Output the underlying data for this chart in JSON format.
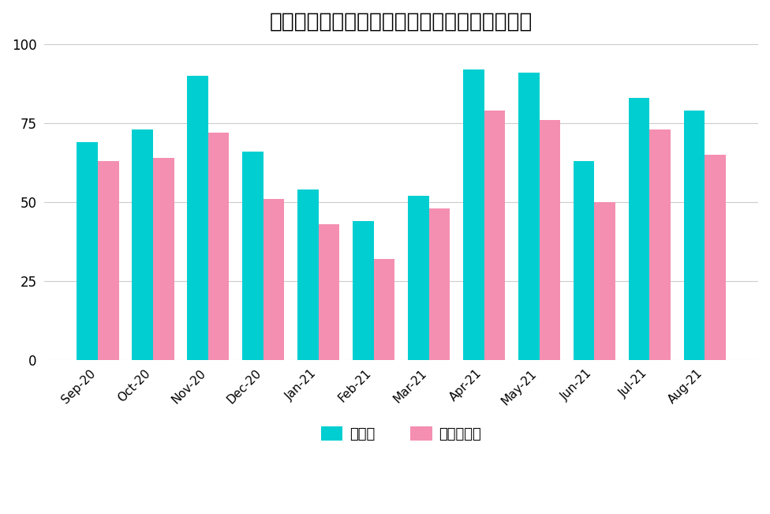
{
  "title": "札幌チャットレディアリュールの応募者数推移",
  "categories": [
    "Sep-20",
    "Oct-20",
    "Nov-20",
    "Dec-20",
    "Jan-21",
    "Feb-21",
    "Mar-21",
    "Apr-21",
    "May-21",
    "Jun-21",
    "Jul-21",
    "Aug-21"
  ],
  "series1_label": "求人数",
  "series2_label": "内未経験者",
  "series1_values": [
    69,
    73,
    90,
    66,
    54,
    44,
    52,
    92,
    91,
    63,
    83,
    79
  ],
  "series2_values": [
    63,
    64,
    72,
    51,
    43,
    32,
    48,
    79,
    76,
    50,
    73,
    65
  ],
  "series1_color": "#00CED1",
  "series2_color": "#F48FB1",
  "ylim": [
    0,
    100
  ],
  "yticks": [
    0,
    25,
    50,
    75,
    100
  ],
  "bar_width": 0.38,
  "background_color": "#ffffff",
  "grid_color": "#cccccc",
  "title_fontsize": 19
}
